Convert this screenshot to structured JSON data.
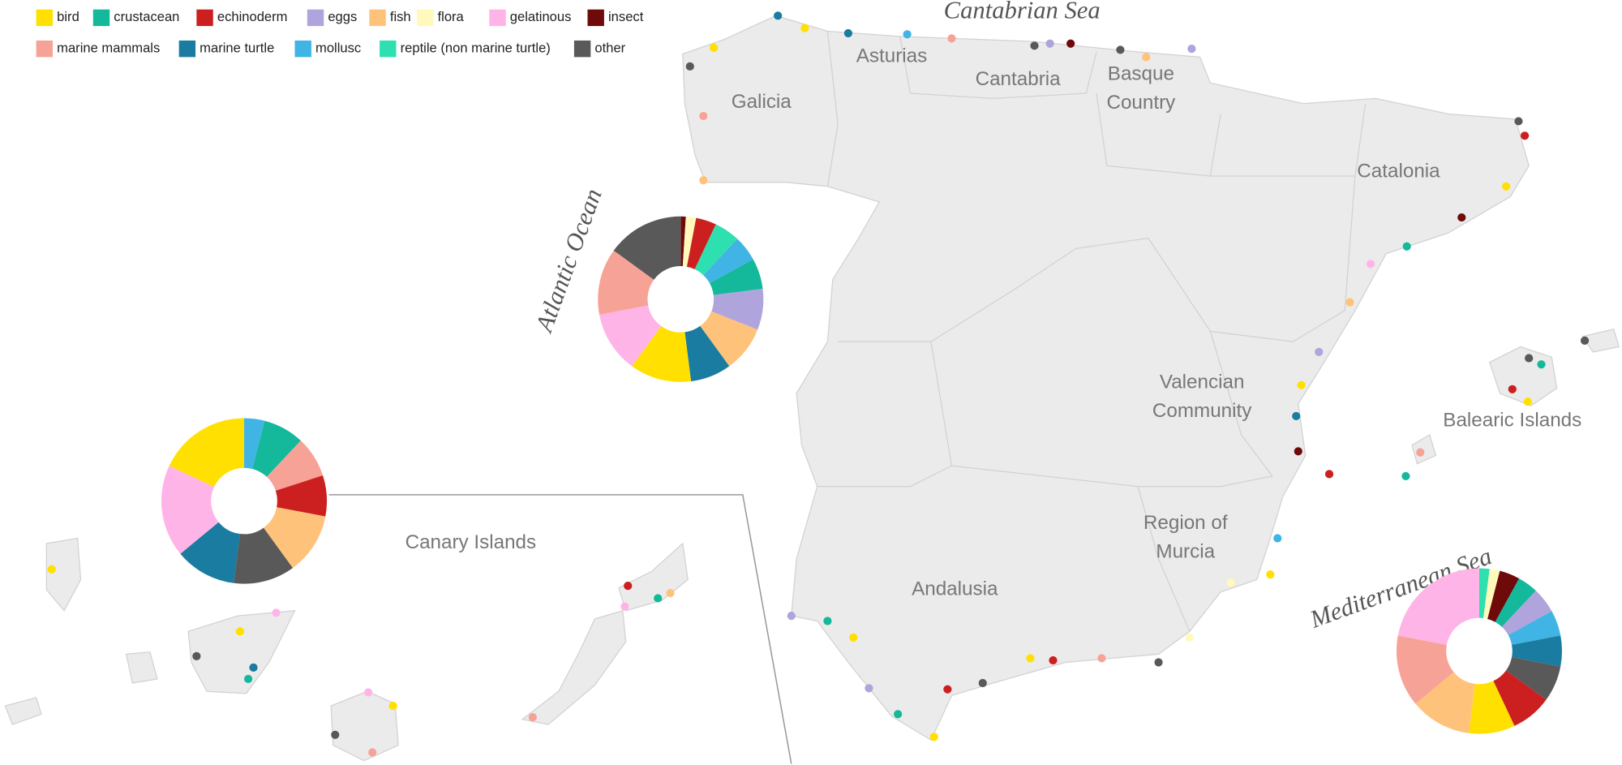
{
  "legend": [
    {
      "label": "bird",
      "color": "#ffe000"
    },
    {
      "label": "crustacean",
      "color": "#14b89a"
    },
    {
      "label": "echinoderm",
      "color": "#cc2020"
    },
    {
      "label": "eggs",
      "color": "#b0a4dc"
    },
    {
      "label": "fish",
      "color": "#ffc27a"
    },
    {
      "label": "flora",
      "color": "#fffabc"
    },
    {
      "label": "gelatinous",
      "color": "#ffb4e8"
    },
    {
      "label": "insect",
      "color": "#6e0a0a"
    },
    {
      "label": "marine mammals",
      "color": "#f7a296"
    },
    {
      "label": "marine turtle",
      "color": "#1a7ca0"
    },
    {
      "label": "mollusc",
      "color": "#40b4e4"
    },
    {
      "label": "reptile (non marine turtle)",
      "color": "#2ee0b0"
    },
    {
      "label": "other",
      "color": "#595959"
    }
  ],
  "regions": [
    {
      "lines": [
        "Galicia"
      ]
    },
    {
      "lines": [
        "Asturias"
      ]
    },
    {
      "lines": [
        "Cantabria"
      ]
    },
    {
      "lines": [
        "Basque",
        "Country"
      ]
    },
    {
      "lines": [
        "Catalonia"
      ]
    },
    {
      "lines": [
        "Valencian",
        "Community"
      ]
    },
    {
      "lines": [
        "Balearic Islands"
      ]
    },
    {
      "lines": [
        "Region of",
        "Murcia"
      ]
    },
    {
      "lines": [
        "Andalusia"
      ]
    },
    {
      "lines": [
        "Canary Islands"
      ]
    }
  ],
  "seas": [
    "Cantabrian Sea",
    "Atlantic Ocean",
    "Mediterranean Sea"
  ],
  "donuts": [
    {
      "values": [
        1,
        2,
        4,
        5,
        5,
        6,
        8,
        9,
        8,
        12,
        12,
        13,
        15
      ],
      "colors": [
        "#6e0a0a",
        "#fffabc",
        "#cc2020",
        "#2ee0b0",
        "#40b4e4",
        "#14b89a",
        "#b0a4dc",
        "#ffc27a",
        "#1a7ca0",
        "#ffe000",
        "#ffb4e8",
        "#f7a296",
        "#595959"
      ]
    },
    {
      "values": [
        4,
        8,
        8,
        8,
        12,
        12,
        12,
        18,
        18
      ],
      "colors": [
        "#40b4e4",
        "#14b89a",
        "#f7a296",
        "#cc2020",
        "#ffc27a",
        "#595959",
        "#1a7ca0",
        "#ffb4e8",
        "#ffe000"
      ]
    },
    {
      "values": [
        2,
        2,
        4,
        4,
        5,
        5,
        6,
        7,
        8,
        9,
        12,
        14,
        22
      ],
      "colors": [
        "#2ee0b0",
        "#fffabc",
        "#6e0a0a",
        "#14b89a",
        "#b0a4dc",
        "#40b4e4",
        "#1a7ca0",
        "#595959",
        "#cc2020",
        "#ffe000",
        "#ffc27a",
        "#f7a296",
        "#ffb4e8"
      ]
    }
  ]
}
